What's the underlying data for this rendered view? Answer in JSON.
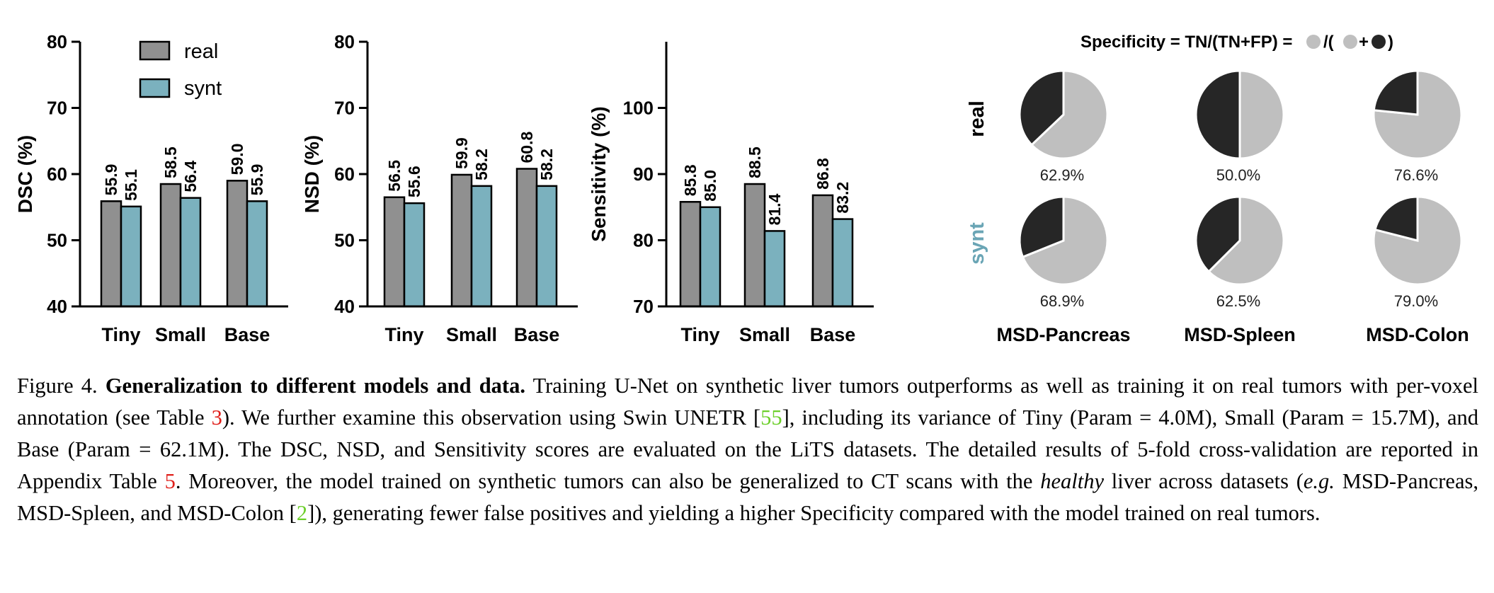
{
  "colors": {
    "real": "#909090",
    "synt": "#7bb1be",
    "pie_light": "#bfbfbf",
    "pie_dark": "#262626",
    "synt_label": "#6aa5b5",
    "ref_red": "#e0201b",
    "ref_green": "#6ccf2a"
  },
  "legend": {
    "real": "real",
    "synt": "synt"
  },
  "chart_data": [
    {
      "type": "bar",
      "ylabel": "DSC (%)",
      "categories": [
        "Tiny",
        "Small",
        "Base"
      ],
      "ylim": [
        40,
        80
      ],
      "yticks": [
        "40",
        "50",
        "60",
        "70",
        "80"
      ],
      "series": [
        {
          "name": "real",
          "values": [
            55.9,
            58.5,
            59.0
          ],
          "labels": [
            "55.9",
            "58.5",
            "59.0"
          ]
        },
        {
          "name": "synt",
          "values": [
            55.1,
            56.4,
            55.9
          ],
          "labels": [
            "55.1",
            "56.4",
            "55.9"
          ]
        }
      ],
      "legend": "top-left"
    },
    {
      "type": "bar",
      "ylabel": "NSD (%)",
      "categories": [
        "Tiny",
        "Small",
        "Base"
      ],
      "ylim": [
        40,
        80
      ],
      "yticks": [
        "40",
        "50",
        "60",
        "70",
        "80"
      ],
      "series": [
        {
          "name": "real",
          "values": [
            56.5,
            59.9,
            60.8
          ],
          "labels": [
            "56.5",
            "59.9",
            "60.8"
          ]
        },
        {
          "name": "synt",
          "values": [
            55.6,
            58.2,
            58.2
          ],
          "labels": [
            "55.6",
            "58.2",
            "58.2"
          ]
        }
      ]
    },
    {
      "type": "bar",
      "ylabel": "Sensitivity (%)",
      "categories": [
        "Tiny",
        "Small",
        "Base"
      ],
      "ylim": [
        70,
        110
      ],
      "yticks": [
        "70",
        "80",
        "90",
        "100"
      ],
      "series": [
        {
          "name": "real",
          "values": [
            85.8,
            88.5,
            86.8
          ],
          "labels": [
            "85.8",
            "88.5",
            "86.8"
          ]
        },
        {
          "name": "synt",
          "values": [
            85.0,
            81.4,
            83.2
          ],
          "labels": [
            "85.0",
            "81.4",
            "83.2"
          ]
        }
      ]
    },
    {
      "type": "pie",
      "title": "Specificity = TN/(TN+FP) = ",
      "row_labels": [
        "real",
        "synt"
      ],
      "column_labels": [
        "MSD-Pancreas",
        "MSD-Spleen",
        "MSD-Colon"
      ],
      "specificity": [
        [
          62.9,
          50.0,
          76.6
        ],
        [
          68.9,
          62.5,
          79.0
        ]
      ],
      "value_labels": [
        [
          "62.9%",
          "50.0%",
          "76.6%"
        ],
        [
          "68.9%",
          "62.5%",
          "79.0%"
        ]
      ]
    }
  ],
  "caption": {
    "label": "Figure 4.",
    "heading": "Generalization to different models and data.",
    "t1": " Training U-Net on synthetic liver tumors outperforms as well as training it on real tumors with per-voxel annotation (see Table ",
    "ref1": "3",
    "t2": "). We further examine this observation using Swin UNETR [",
    "ref2": "55",
    "t3": "], including its variance of Tiny (Param = 4.0M), Small (Param = 15.7M), and Base (Param = 62.1M). The DSC, NSD, and Sensitivity scores are evaluated on the LiTS datasets. The detailed results of 5-fold cross-validation are reported in Appendix Table ",
    "ref3": "5",
    "t4": ". Moreover, the model trained on synthetic tumors can also be generalized to CT scans with the ",
    "healthy": "healthy",
    "t5": " liver across datasets (",
    "eg": "e.g.",
    "t6": " MSD-Pancreas, MSD-Spleen, and MSD-Colon [",
    "ref4": "2",
    "t7": "]), generating fewer false positives and yielding a higher Specificity compared with the model trained on real tumors."
  }
}
